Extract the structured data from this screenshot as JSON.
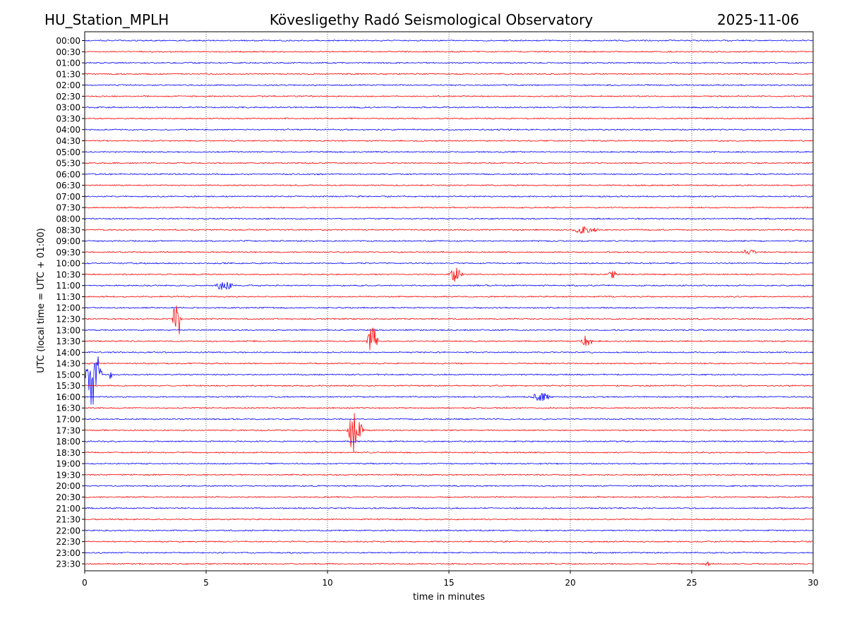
{
  "header": {
    "station": "HU_Station_MPLH",
    "title": "Kövesligethy Radó Seismological Observatory",
    "date": "2025-11-06"
  },
  "chart_data": {
    "type": "line",
    "title": "Kövesligethy Radó Seismological Observatory",
    "xlabel": "time in minutes",
    "ylabel": "UTC (local time = UTC + 01:00)",
    "xlim": [
      0,
      30
    ],
    "xticks": [
      0,
      5,
      10,
      15,
      20,
      25,
      30
    ],
    "vertical_gridlines": [
      5,
      10,
      15,
      20,
      25
    ],
    "colors": {
      "even_hour": "#0000ff",
      "half_hour": "#ff0000"
    },
    "rows": [
      "00:00",
      "00:30",
      "01:00",
      "01:30",
      "02:00",
      "02:30",
      "03:00",
      "03:30",
      "04:00",
      "04:30",
      "05:00",
      "05:30",
      "06:00",
      "06:30",
      "07:00",
      "07:30",
      "08:00",
      "08:30",
      "09:00",
      "09:30",
      "10:00",
      "10:30",
      "11:00",
      "11:30",
      "12:00",
      "12:30",
      "13:00",
      "13:30",
      "14:00",
      "14:30",
      "15:00",
      "15:30",
      "16:00",
      "16:30",
      "17:00",
      "17:30",
      "18:00",
      "18:30",
      "19:00",
      "19:30",
      "20:00",
      "20:30",
      "21:00",
      "21:30",
      "22:00",
      "22:30",
      "23:00",
      "23:30"
    ],
    "events": [
      {
        "row": "08:30",
        "start_min": 20.0,
        "end_min": 21.3,
        "amplitude": 0.45
      },
      {
        "row": "09:30",
        "start_min": 27.0,
        "end_min": 27.8,
        "amplitude": 0.3
      },
      {
        "row": "10:30",
        "start_min": 15.0,
        "end_min": 15.6,
        "amplitude": 0.8
      },
      {
        "row": "10:30",
        "start_min": 21.5,
        "end_min": 22.0,
        "amplitude": 0.5
      },
      {
        "row": "11:00",
        "start_min": 5.3,
        "end_min": 6.2,
        "amplitude": 0.55
      },
      {
        "row": "12:30",
        "start_min": 3.6,
        "end_min": 4.0,
        "amplitude": 2.6
      },
      {
        "row": "13:30",
        "start_min": 11.6,
        "end_min": 12.1,
        "amplitude": 2.0
      },
      {
        "row": "13:30",
        "start_min": 20.4,
        "end_min": 21.0,
        "amplitude": 0.6
      },
      {
        "row": "15:00",
        "start_min": 0.0,
        "end_min": 0.75,
        "amplitude": 3.5
      },
      {
        "row": "15:00",
        "start_min": 1.0,
        "end_min": 1.15,
        "amplitude": 0.6
      },
      {
        "row": "16:00",
        "start_min": 18.3,
        "end_min": 19.3,
        "amplitude": 0.5
      },
      {
        "row": "17:30",
        "start_min": 10.8,
        "end_min": 11.5,
        "amplitude": 2.6
      },
      {
        "row": "23:30",
        "start_min": 25.5,
        "end_min": 25.8,
        "amplitude": 0.3
      }
    ]
  }
}
